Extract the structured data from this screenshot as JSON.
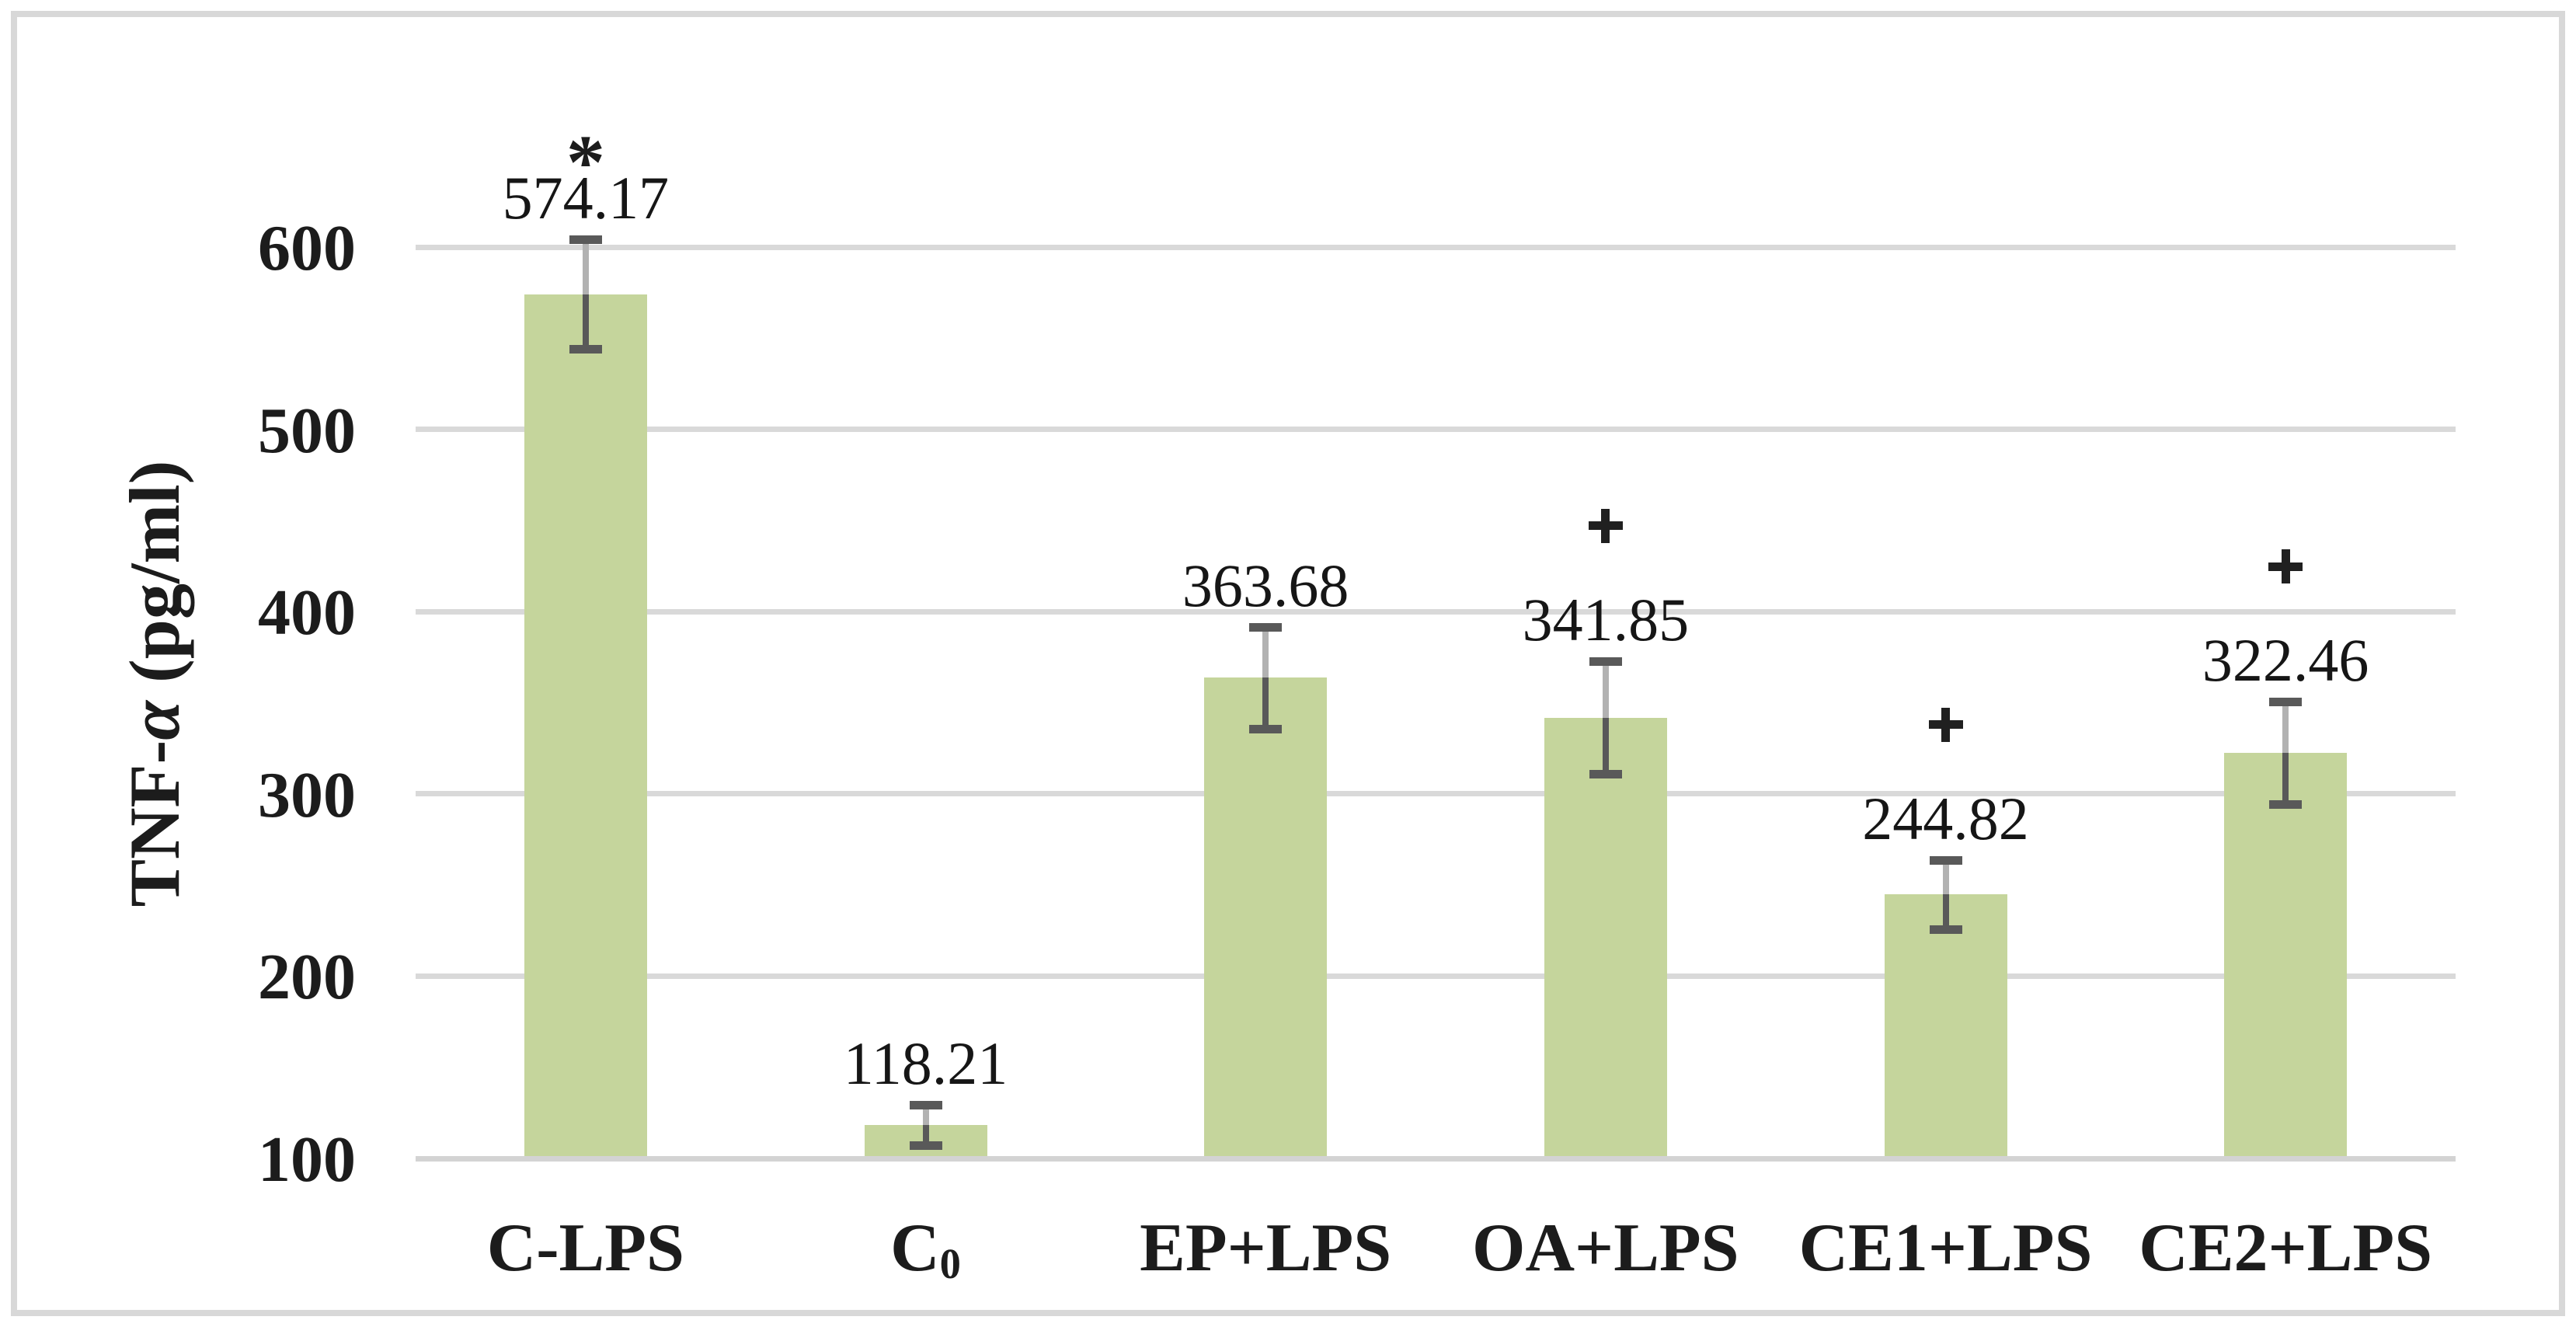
{
  "chart_data": {
    "type": "bar",
    "title": "",
    "ylabel": "TNF-α (pg/ml)",
    "xlabel": "",
    "categories": [
      "C-LPS",
      "C₀",
      "EP+LPS",
      "OA+LPS",
      "CE1+LPS",
      "CE2+LPS"
    ],
    "values": [
      574.17,
      118.21,
      363.68,
      341.85,
      244.82,
      322.46
    ],
    "value_labels": [
      "574.17",
      "118.21",
      "363.68",
      "341.85",
      "244.82",
      "322.46"
    ],
    "errors": [
      30,
      11,
      28,
      31,
      19,
      28
    ],
    "annotations": [
      "*",
      "",
      "",
      "+",
      "+",
      "+"
    ],
    "y_ticks": [
      100,
      200,
      300,
      400,
      500,
      600
    ],
    "ylim": [
      100,
      650
    ],
    "grid": true,
    "legend": false,
    "colors": {
      "bar_fill": "#c5d59c",
      "gridline": "#d9d9d9",
      "axis_line": "#d3d3d3",
      "chart_border": "#d8d8d8",
      "error_cap": "#595959",
      "error_line_upper": "#b2b2b2",
      "error_line_lower": "#595959",
      "text": "#1c1c1c"
    }
  }
}
